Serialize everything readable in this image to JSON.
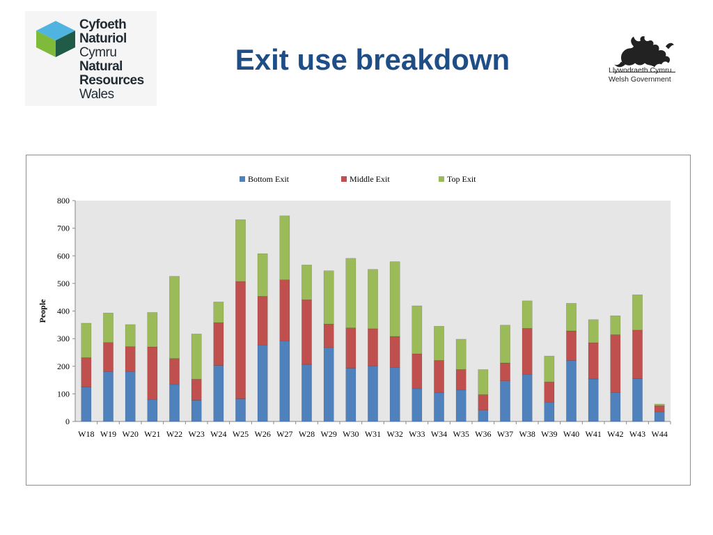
{
  "header": {
    "title": "Exit use breakdown",
    "left_logo": {
      "lines": [
        "Cyfoeth",
        "Naturiol",
        "Cymru",
        "Natural",
        "Resources",
        "Wales"
      ],
      "colors": {
        "light_blue": "#4fb4e0",
        "green": "#7fba3a",
        "dark_green": "#1f5b46",
        "dark": "#2c4a55"
      }
    },
    "right_logo": {
      "lines": [
        "Llywodraeth Cymru",
        "Welsh Government"
      ]
    }
  },
  "chart_data": {
    "type": "bar",
    "stacked": true,
    "categories": [
      "W18",
      "W19",
      "W20",
      "W21",
      "W22",
      "W23",
      "W24",
      "W25",
      "W26",
      "W27",
      "W28",
      "W29",
      "W30",
      "W31",
      "W32",
      "W33",
      "W34",
      "W35",
      "W36",
      "W37",
      "W38",
      "W39",
      "W40",
      "W41",
      "W42",
      "W43",
      "W44"
    ],
    "series": [
      {
        "name": "Bottom Exit",
        "color": "#4f81bd",
        "values": [
          125,
          180,
          181,
          80,
          134,
          77,
          203,
          82,
          277,
          292,
          207,
          268,
          193,
          201,
          196,
          119,
          104,
          114,
          41,
          147,
          171,
          70,
          221,
          154,
          105,
          155,
          35
        ]
      },
      {
        "name": "Middle Exit",
        "color": "#c0504d",
        "values": [
          106,
          106,
          90,
          190,
          94,
          76,
          155,
          425,
          176,
          221,
          234,
          85,
          146,
          135,
          112,
          126,
          117,
          74,
          56,
          65,
          166,
          73,
          107,
          131,
          209,
          176,
          22
        ]
      },
      {
        "name": "Top Exit",
        "color": "#9bbb59",
        "values": [
          125,
          107,
          80,
          125,
          298,
          164,
          75,
          224,
          155,
          232,
          126,
          193,
          252,
          215,
          271,
          174,
          124,
          110,
          91,
          137,
          100,
          94,
          100,
          84,
          69,
          128,
          6
        ]
      }
    ],
    "title": "",
    "xlabel": "",
    "ylabel": "People",
    "ylim": [
      0,
      800
    ],
    "yticks": [
      0,
      100,
      200,
      300,
      400,
      500,
      600,
      700,
      800
    ],
    "legend_position": "top",
    "grid": false,
    "plot_background": "#e6e6e6"
  }
}
